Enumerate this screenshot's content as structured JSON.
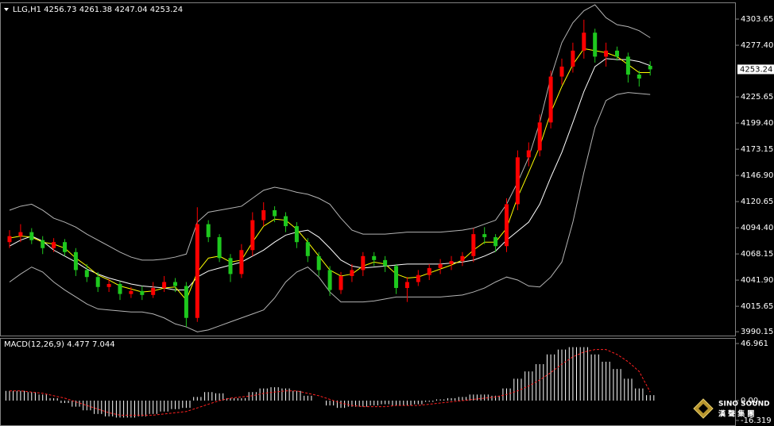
{
  "chart_data": [
    {
      "type": "candlestick",
      "title": "LLG,H1",
      "open": [
        4080,
        4086,
        4090,
        4082,
        4074,
        4080,
        4070,
        4052,
        4045,
        4035,
        4038,
        4028,
        4031,
        4027,
        4034,
        4040,
        4036,
        4004,
        4098,
        4085,
        4064,
        4048,
        4072,
        4102,
        4112,
        4106,
        4096,
        4080,
        4066,
        4052,
        4032,
        4046,
        4052,
        4066,
        4062,
        4056,
        4034,
        4040,
        4047,
        4054,
        4058,
        4061,
        4066,
        4088,
        4085,
        4076,
        4118,
        4165,
        4172,
        4200,
        4246,
        4256,
        4272,
        4290,
        4266,
        4272,
        4266,
        4248,
        4256.73
      ],
      "high": [
        4092,
        4098,
        4094,
        4086,
        4084,
        4083,
        4074,
        4058,
        4050,
        4043,
        4041,
        4035,
        4036,
        4040,
        4046,
        4044,
        4040,
        4115,
        4102,
        4088,
        4068,
        4078,
        4110,
        4120,
        4116,
        4110,
        4100,
        4084,
        4070,
        4056,
        4050,
        4058,
        4070,
        4070,
        4066,
        4058,
        4045,
        4052,
        4058,
        4063,
        4066,
        4070,
        4094,
        4095,
        4088,
        4124,
        4172,
        4180,
        4208,
        4252,
        4264,
        4280,
        4303,
        4294,
        4280,
        4276,
        4270,
        4252,
        4261.38
      ],
      "low": [
        4074,
        4080,
        4078,
        4068,
        4070,
        4066,
        4046,
        4040,
        4030,
        4030,
        4022,
        4024,
        4022,
        4024,
        4030,
        4030,
        3995,
        4000,
        4080,
        4060,
        4040,
        4044,
        4066,
        4096,
        4100,
        4090,
        4074,
        4060,
        4046,
        4026,
        4028,
        4040,
        4046,
        4056,
        4050,
        4028,
        4020,
        4036,
        4042,
        4048,
        4052,
        4056,
        4060,
        4078,
        4070,
        4070,
        4112,
        4156,
        4166,
        4194,
        4238,
        4250,
        4264,
        4260,
        4256,
        4262,
        4240,
        4236,
        4247.04
      ],
      "close": [
        4086,
        4090,
        4082,
        4074,
        4080,
        4070,
        4052,
        4045,
        4035,
        4038,
        4028,
        4031,
        4027,
        4034,
        4040,
        4036,
        4004,
        4098,
        4085,
        4064,
        4048,
        4072,
        4102,
        4112,
        4106,
        4096,
        4080,
        4066,
        4052,
        4032,
        4046,
        4052,
        4066,
        4062,
        4056,
        4034,
        4040,
        4047,
        4054,
        4058,
        4061,
        4066,
        4088,
        4085,
        4076,
        4118,
        4165,
        4172,
        4200,
        4246,
        4256,
        4272,
        4290,
        4266,
        4272,
        4266,
        4248,
        4244,
        4253.24
      ],
      "up_color": "#ff0000",
      "down_color": "#1ec81e",
      "bands": {
        "color": "#b4b4b4",
        "middle_color": "#ffffff",
        "upper": [
          4112,
          4116,
          4118,
          4112,
          4104,
          4100,
          4095,
          4088,
          4082,
          4076,
          4070,
          4065,
          4062,
          4062,
          4063,
          4065,
          4068,
          4100,
          4110,
          4112,
          4114,
          4116,
          4124,
          4132,
          4135,
          4133,
          4130,
          4128,
          4124,
          4118,
          4104,
          4092,
          4088,
          4088,
          4088,
          4089,
          4090,
          4090,
          4090,
          4090,
          4091,
          4092,
          4094,
          4098,
          4102,
          4118,
          4140,
          4165,
          4200,
          4245,
          4280,
          4300,
          4312,
          4318,
          4305,
          4298,
          4296,
          4292,
          4285
        ],
        "middle": [
          4076,
          4082,
          4086,
          4081,
          4072,
          4066,
          4060,
          4053,
          4048,
          4044,
          4041,
          4038,
          4036,
          4035,
          4034,
          4032,
          4032,
          4045,
          4051,
          4054,
          4057,
          4060,
          4066,
          4072,
          4080,
          4087,
          4090,
          4092,
          4085,
          4074,
          4062,
          4056,
          4054,
          4055,
          4056,
          4057,
          4058,
          4058,
          4058,
          4058,
          4059,
          4060,
          4062,
          4066,
          4071,
          4082,
          4091,
          4100,
          4118,
          4145,
          4170,
          4200,
          4231,
          4256,
          4264,
          4263,
          4263,
          4261,
          4257
        ],
        "lower": [
          4040,
          4048,
          4055,
          4050,
          4040,
          4032,
          4025,
          4018,
          4013,
          4012,
          4011,
          4010,
          4010,
          4008,
          4004,
          3998,
          3995,
          3990,
          3992,
          3996,
          4000,
          4004,
          4008,
          4012,
          4024,
          4040,
          4050,
          4055,
          4045,
          4030,
          4020,
          4020,
          4020,
          4021,
          4023,
          4025,
          4025,
          4025,
          4025,
          4025,
          4026,
          4027,
          4030,
          4034,
          4040,
          4045,
          4042,
          4036,
          4035,
          4045,
          4060,
          4100,
          4150,
          4195,
          4222,
          4228,
          4230,
          4229,
          4228
        ]
      },
      "ma": {
        "color": "#ffff00",
        "values": [
          4084,
          4086,
          4085,
          4080,
          4078,
          4074,
          4064,
          4056,
          4047,
          4042,
          4036,
          4033,
          4030,
          4031,
          4034,
          4035,
          4022,
          4050,
          4064,
          4066,
          4060,
          4062,
          4080,
          4096,
          4103,
          4102,
          4093,
          4080,
          4066,
          4052,
          4046,
          4048,
          4056,
          4060,
          4058,
          4048,
          4044,
          4045,
          4049,
          4053,
          4057,
          4062,
          4072,
          4080,
          4080,
          4094,
          4125,
          4150,
          4176,
          4210,
          4236,
          4258,
          4274,
          4272,
          4270,
          4266,
          4258,
          4250,
          4250
        ]
      },
      "ylim": [
        3986.3,
        4319.6
      ],
      "yticks": [
        4303.65,
        {
          "value": 4277.4,
          "label": "4277.40"
        },
        4225.65,
        {
          "value": 4199.4,
          "label": "4199.40"
        },
        4173.15,
        {
          "value": 4146.9,
          "label": "4146.90"
        },
        4120.65,
        {
          "value": 4094.4,
          "label": "4094.40"
        },
        4068.15,
        {
          "value": 4041.9,
          "label": "4041.90"
        },
        4015.65,
        3990.15
      ]
    },
    {
      "type": "macd",
      "title": "MACD(12,26,9)",
      "histogram": [
        8,
        8,
        7,
        5,
        2,
        -2,
        -5,
        -8,
        -11,
        -13,
        -14,
        -14,
        -13,
        -11,
        -9,
        -7,
        -6,
        3,
        7,
        6,
        2,
        2,
        7,
        10,
        11,
        10,
        8,
        4,
        0,
        -4,
        -6,
        -5,
        -5,
        -4,
        -3,
        -4,
        -4,
        -3,
        -1,
        1,
        2,
        3,
        5,
        5,
        4,
        10,
        18,
        24,
        30,
        38,
        42,
        44,
        44,
        38,
        32,
        26,
        18,
        10,
        4.477
      ],
      "signal": [
        8,
        8,
        7,
        6,
        4,
        2,
        -1,
        -4,
        -7,
        -10,
        -12,
        -12,
        -12,
        -12,
        -11,
        -10,
        -9,
        -6,
        -3,
        0,
        2,
        3,
        4,
        6,
        7,
        8,
        8,
        6,
        4,
        1,
        -2,
        -4,
        -5,
        -5,
        -5,
        -4,
        -4,
        -4,
        -3,
        -2,
        -1,
        0,
        1,
        2,
        3,
        5,
        8,
        12,
        17,
        23,
        30,
        36,
        40,
        42,
        42,
        38,
        32,
        24,
        7.044
      ],
      "histogram_color": "#ffffff",
      "signal_color": "#ff2020",
      "ylim": [
        -19.6,
        50.9
      ],
      "yticks": [
        46.961,
        {
          "value": 0,
          "label": "0.00"
        },
        -16.319
      ]
    }
  ],
  "logo": {
    "name": "SINO SOUND",
    "subtitle": "漢 聲 集 團"
  }
}
